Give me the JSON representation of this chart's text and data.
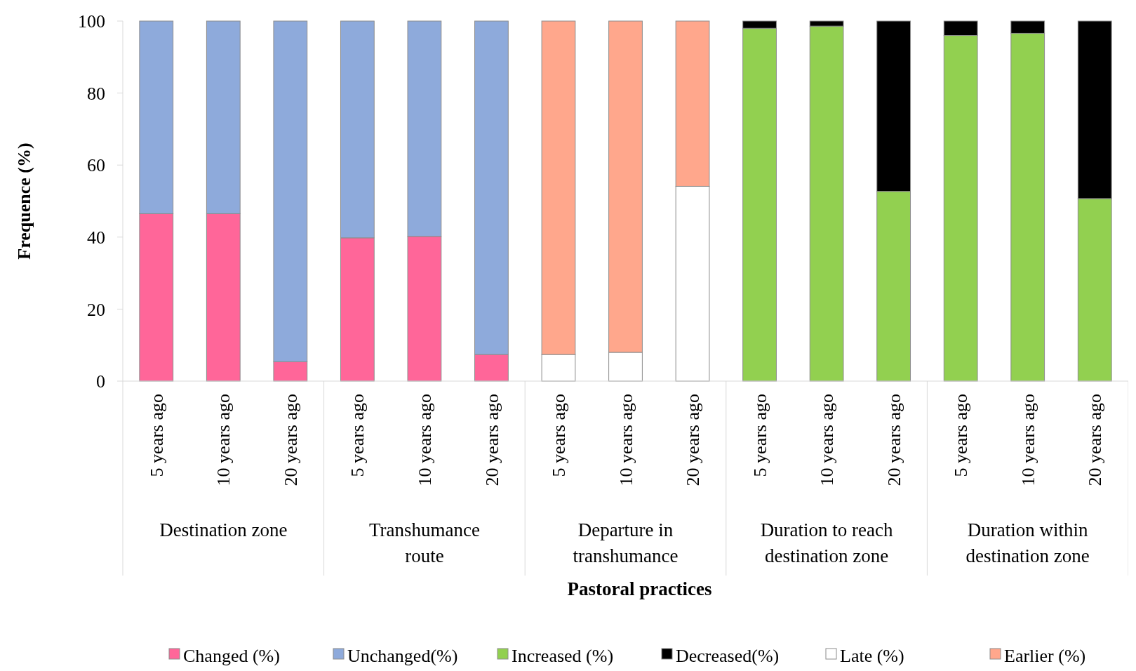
{
  "chart_data": {
    "type": "bar",
    "stacked": true,
    "xlabel": "Pastoral practices",
    "ylabel": "Frequence (%)",
    "categories": [
      "5 years ago",
      "10 years ago",
      "20 years ago",
      "5 years ago",
      "10 years ago",
      "20 years ago",
      "5 years ago",
      "10 years ago",
      "20 years ago",
      "5 years ago",
      "10 years ago",
      "20 years ago",
      "5 years ago",
      "10 years ago",
      "20 years ago"
    ],
    "annotations": [
      "Destination zone",
      "Transhumance route",
      "Departure in transhumance",
      "Duration to reach destination zone",
      "Duration within destination zone"
    ],
    "series": [
      {
        "name": "Changed (%)",
        "color": "#ff6699",
        "values": [
          46.5,
          46.5,
          5.4,
          39.8,
          40.2,
          7.4,
          null,
          null,
          null,
          null,
          null,
          null,
          null,
          null,
          null
        ]
      },
      {
        "name": "Unchanged(%)",
        "color": "#8eaadb",
        "values": [
          53.5,
          53.5,
          94.6,
          60.2,
          59.8,
          92.6,
          null,
          null,
          null,
          null,
          null,
          null,
          null,
          null,
          null
        ]
      },
      {
        "name": "Increased (%)",
        "color": "#92d050",
        "values": [
          null,
          null,
          null,
          null,
          null,
          null,
          null,
          null,
          null,
          98,
          98.6,
          52.7,
          96,
          96.6,
          50.7
        ]
      },
      {
        "name": "Decreased(%)",
        "color": "#000000",
        "values": [
          null,
          null,
          null,
          null,
          null,
          null,
          null,
          null,
          null,
          2,
          1.4,
          47.3,
          4,
          3.4,
          49.3
        ]
      },
      {
        "name": "Late (%)",
        "color": "#ffffff",
        "values": [
          null,
          null,
          null,
          null,
          null,
          null,
          7.4,
          8,
          54.1,
          null,
          null,
          null,
          null,
          null,
          null
        ]
      },
      {
        "name": "Earlier (%)",
        "color": "#ffa78c",
        "values": [
          null,
          null,
          null,
          null,
          null,
          null,
          92.6,
          92,
          45.9,
          null,
          null,
          null,
          null,
          null,
          null
        ]
      }
    ],
    "ylim": [
      0,
      100
    ],
    "yticks": [
      0,
      20,
      40,
      60,
      80,
      100
    ],
    "grid": false,
    "legend": "bottom"
  }
}
